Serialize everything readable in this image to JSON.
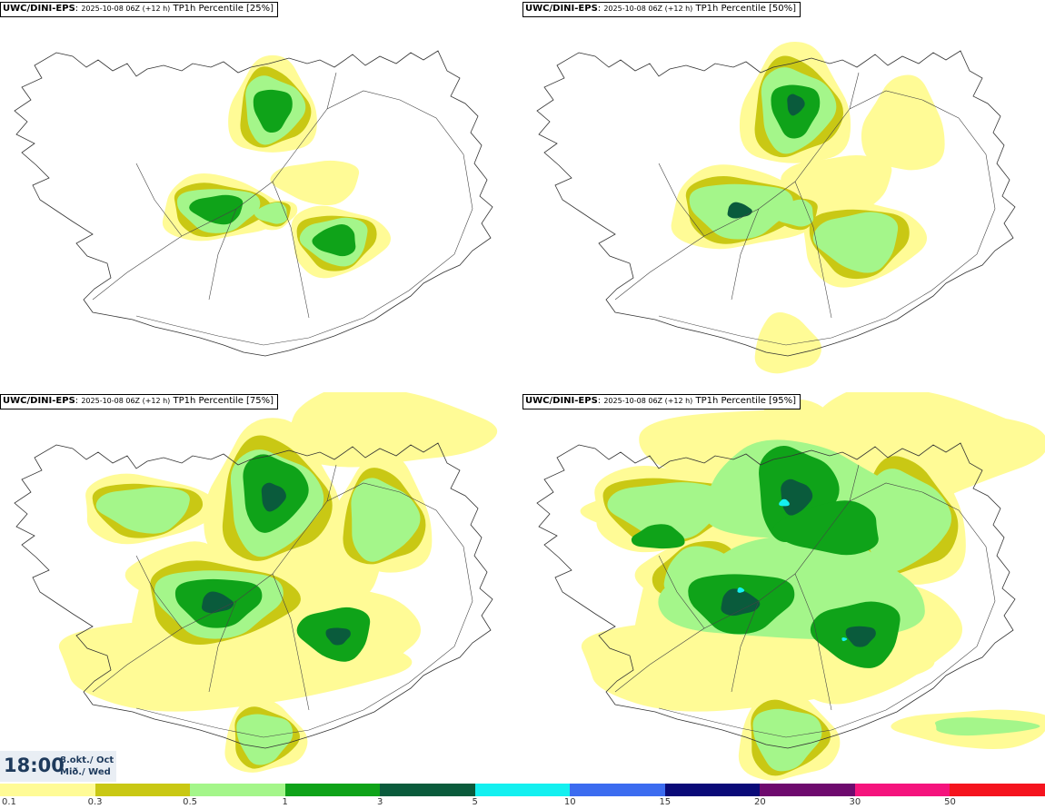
{
  "panels": [
    {
      "model": "UWC/DINI-EPS",
      "run": "2025-10-08 06Z (+12 h)",
      "label": "TP1h Percentile [25%]"
    },
    {
      "model": "UWC/DINI-EPS",
      "run": "2025-10-08 06Z (+12 h)",
      "label": "TP1h Percentile [50%]"
    },
    {
      "model": "UWC/DINI-EPS",
      "run": "2025-10-08 06Z (+12 h)",
      "label": "TP1h Percentile [75%]"
    },
    {
      "model": "UWC/DINI-EPS",
      "run": "2025-10-08 06Z (+12 h)",
      "label": "TP1h Percentile [95%]"
    }
  ],
  "time": {
    "value": "18:00",
    "date_line1": "8.okt./ Oct",
    "date_line2": "Mið./ Wed"
  },
  "legend": {
    "labels": [
      "0.1",
      "0.3",
      "0.5",
      "1",
      "3",
      "5",
      "10",
      "15",
      "20",
      "30",
      "50"
    ],
    "colors": [
      "#fffb96",
      "#c9c814",
      "#a4f68a",
      "#0fa319",
      "#0a5b3c",
      "#14f0f0",
      "#3c6cf0",
      "#0a0a78",
      "#6e0a6e",
      "#f5147d",
      "#f5141e"
    ]
  }
}
